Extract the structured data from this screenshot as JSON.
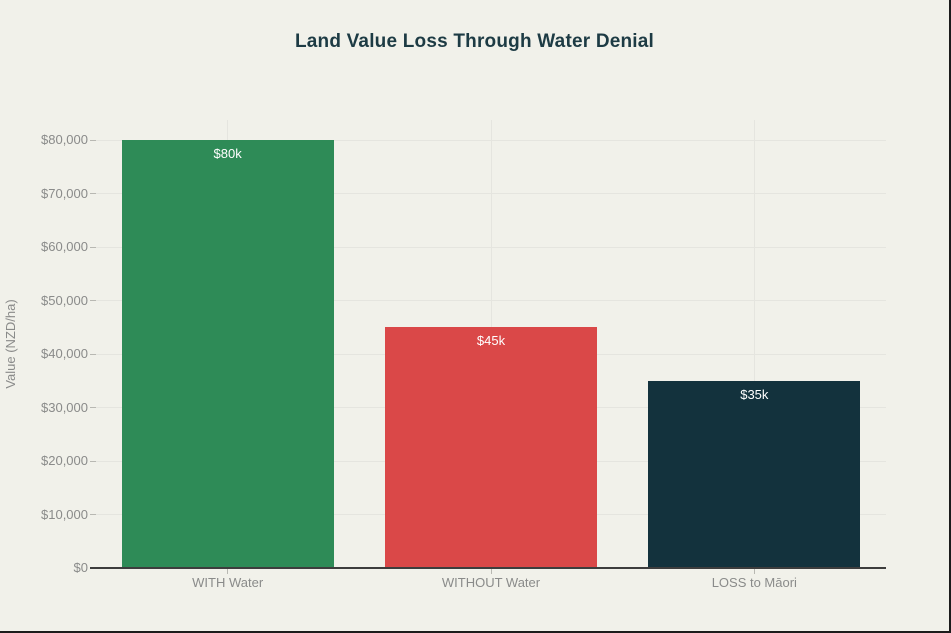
{
  "window": {
    "background": "#F1F1EA",
    "edge_border_color": "#1C1C1C"
  },
  "chart_data": {
    "type": "bar",
    "title": "Land Value Loss Through Water Denial",
    "xlabel": "",
    "ylabel": "Value (NZD/ha)",
    "categories": [
      "WITH Water",
      "WITHOUT Water",
      "LOSS to Māori"
    ],
    "values": [
      80000,
      45000,
      35000
    ],
    "bar_labels": [
      "$80k",
      "$45k",
      "$35k"
    ],
    "bar_colors": [
      "#2E8B57",
      "#DA4848",
      "#13323D"
    ],
    "ylim": [
      0,
      80000
    ],
    "yticks": [
      0,
      10000,
      20000,
      30000,
      40000,
      50000,
      60000,
      70000,
      80000
    ],
    "ytick_labels": [
      "$0",
      "$10,000",
      "$20,000",
      "$30,000",
      "$40,000",
      "$50,000",
      "$60,000",
      "$70,000",
      "$80,000"
    ],
    "grid": true,
    "legend": "none",
    "styles": {
      "title_color": "#1D3B44",
      "tick_label_color": "#8A8B8A",
      "grid_color": "#E5E5DF",
      "axis_line_color": "#3D3D3D",
      "tick_mark_color": "#B8B8B2",
      "bar_value_label_color": "#FFFFFF"
    }
  }
}
